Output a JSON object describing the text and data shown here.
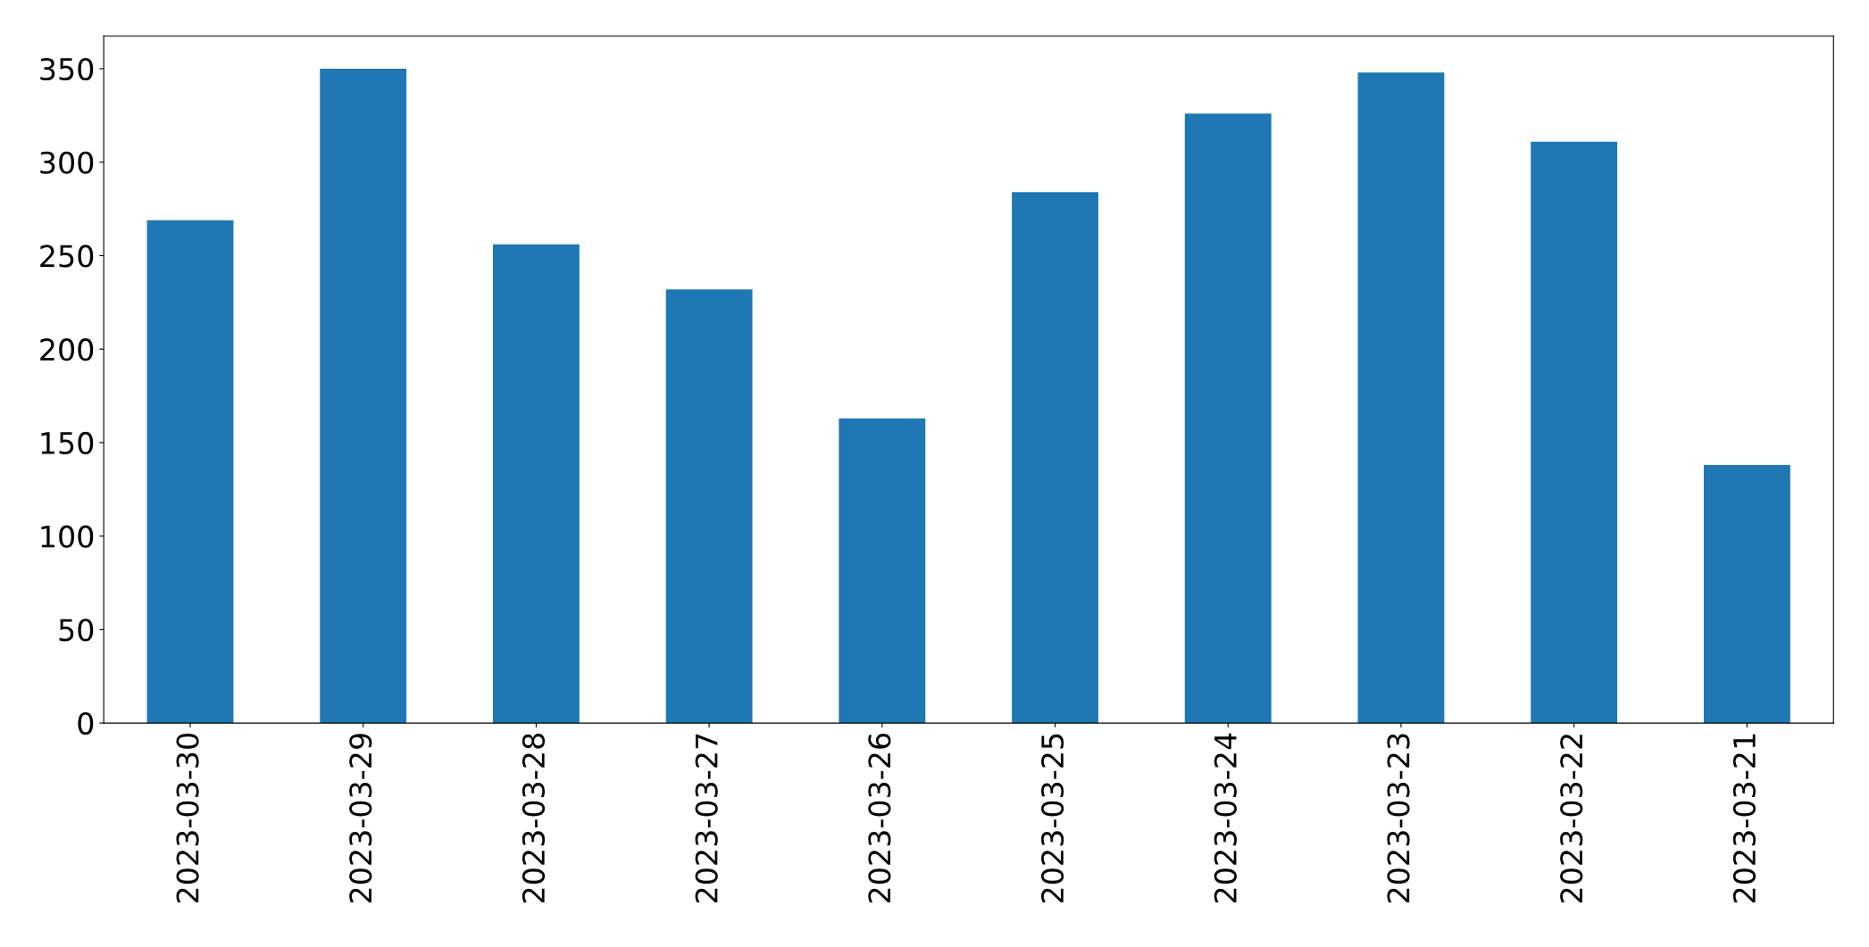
{
  "chart_data": {
    "type": "bar",
    "categories": [
      "2023-03-30",
      "2023-03-29",
      "2023-03-28",
      "2023-03-27",
      "2023-03-26",
      "2023-03-25",
      "2023-03-24",
      "2023-03-23",
      "2023-03-22",
      "2023-03-21"
    ],
    "values": [
      269,
      350,
      256,
      232,
      163,
      284,
      326,
      348,
      311,
      138
    ],
    "color": "#1f77b4",
    "ylim": [
      0,
      367.5
    ],
    "yticks": [
      0,
      50,
      100,
      150,
      200,
      250,
      300,
      350
    ],
    "grid": false,
    "legend": false
  }
}
